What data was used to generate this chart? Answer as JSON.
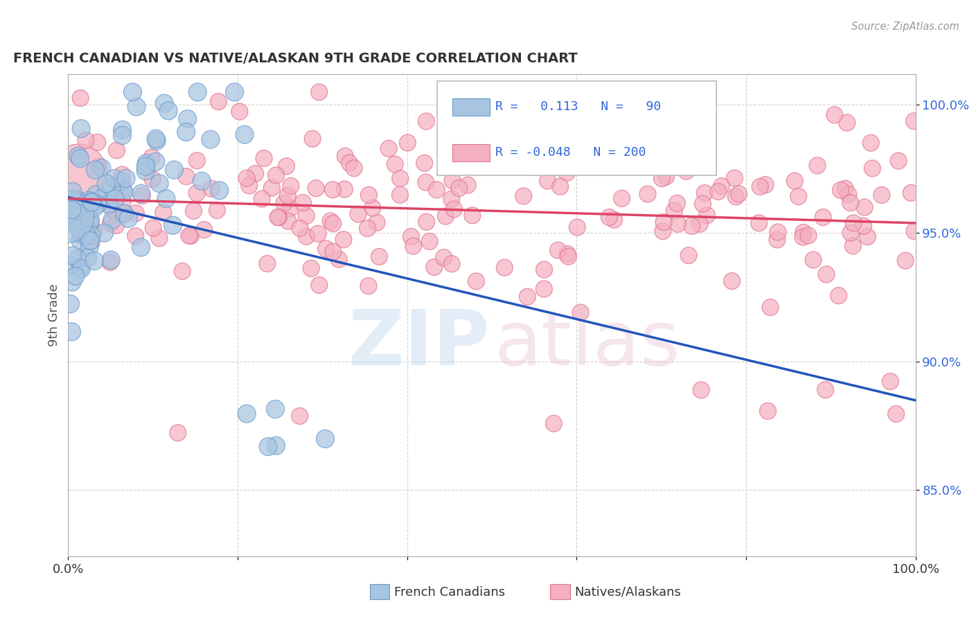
{
  "title": "FRENCH CANADIAN VS NATIVE/ALASKAN 9TH GRADE CORRELATION CHART",
  "source": "Source: ZipAtlas.com",
  "ylabel": "9th Grade",
  "ytick_labels": [
    "85.0%",
    "90.0%",
    "95.0%",
    "100.0%"
  ],
  "ytick_values": [
    0.85,
    0.9,
    0.95,
    1.0
  ],
  "blue_fill": "#a8c4e0",
  "blue_edge": "#6699cc",
  "pink_fill": "#f4b0c0",
  "pink_edge": "#e07090",
  "blue_line_color": "#2255bb",
  "pink_line_color": "#dd4466",
  "R_blue": 0.113,
  "N_blue": 90,
  "R_pink": -0.048,
  "N_pink": 200,
  "xmin": 0.0,
  "xmax": 1.0,
  "ymin": 0.824,
  "ymax": 1.012,
  "dot_size": 350
}
